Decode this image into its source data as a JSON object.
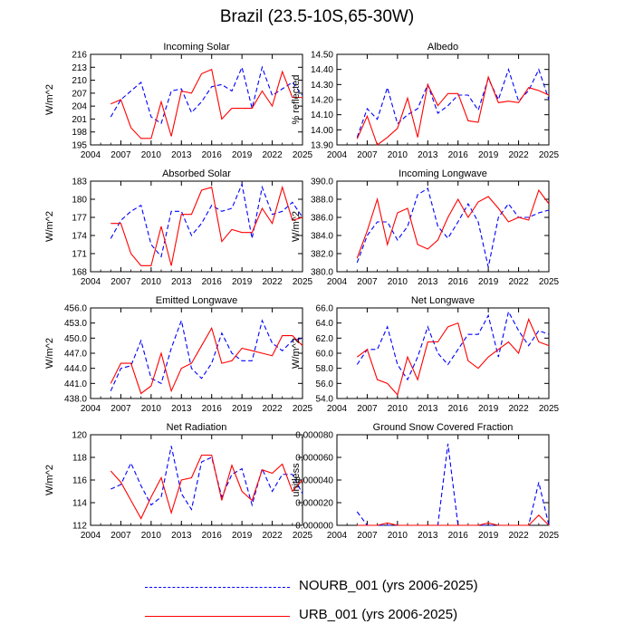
{
  "figure": {
    "title": "Brazil (23.5-10S,65-30W)"
  },
  "legend": {
    "items": [
      {
        "label": "NOURB_001 (yrs 2006-2025)",
        "color": "#0000ff",
        "style": "dashed"
      },
      {
        "label": "URB_001 (yrs 2006-2025)",
        "color": "#ff0000",
        "style": "solid"
      }
    ]
  },
  "chart_data": [
    {
      "type": "line",
      "title": "Incoming Solar",
      "ylabel": "W/m^2",
      "xlim": [
        2004,
        2025
      ],
      "ylim": [
        195,
        216
      ],
      "xticks": [
        "2004",
        "2007",
        "2010",
        "2013",
        "2016",
        "2019",
        "2022",
        "2025"
      ],
      "yticks": [
        "195",
        "198",
        "201",
        "204",
        "207",
        "210",
        "213",
        "216"
      ],
      "x": [
        2006,
        2007,
        2008,
        2009,
        2010,
        2011,
        2012,
        2013,
        2014,
        2015,
        2016,
        2017,
        2018,
        2019,
        2020,
        2021,
        2022,
        2023,
        2024,
        2025
      ],
      "series": [
        {
          "name": "NOURB_001",
          "color": "#0000ff",
          "dash": "dashed",
          "values": [
            201.5,
            205.5,
            207.5,
            209.5,
            201.5,
            200.0,
            207.5,
            208.0,
            202.5,
            205.0,
            208.5,
            209.0,
            207.5,
            213.0,
            203.5,
            213.0,
            206.5,
            208.0,
            209.5,
            206.5
          ]
        },
        {
          "name": "URB_001",
          "color": "#ff0000",
          "dash": "solid",
          "values": [
            204.5,
            205.5,
            199.0,
            196.5,
            196.5,
            205.0,
            197.0,
            207.5,
            207.0,
            211.5,
            212.5,
            201.0,
            203.5,
            203.5,
            203.5,
            207.5,
            204.0,
            212.0,
            206.0,
            206.0
          ]
        }
      ]
    },
    {
      "type": "line",
      "title": "Albedo",
      "ylabel": "% reflected",
      "xlim": [
        2004,
        2025
      ],
      "ylim": [
        13.9,
        14.5
      ],
      "xticks": [
        "2004",
        "2007",
        "2010",
        "2013",
        "2016",
        "2019",
        "2022",
        "2025"
      ],
      "yticks": [
        "13.90",
        "14.00",
        "14.10",
        "14.20",
        "14.30",
        "14.40",
        "14.50"
      ],
      "x": [
        2006,
        2007,
        2008,
        2009,
        2010,
        2011,
        2012,
        2013,
        2014,
        2015,
        2016,
        2017,
        2018,
        2019,
        2020,
        2021,
        2022,
        2023,
        2024,
        2025
      ],
      "series": [
        {
          "name": "NOURB_001",
          "color": "#0000ff",
          "dash": "dashed",
          "values": [
            13.95,
            14.14,
            14.07,
            14.28,
            14.04,
            14.1,
            14.14,
            14.3,
            14.11,
            14.16,
            14.23,
            14.23,
            14.13,
            14.34,
            14.2,
            14.4,
            14.19,
            14.26,
            14.4,
            14.2
          ]
        },
        {
          "name": "URB_001",
          "color": "#ff0000",
          "dash": "solid",
          "values": [
            13.94,
            14.09,
            13.9,
            13.95,
            14.01,
            14.21,
            13.95,
            14.3,
            14.16,
            14.24,
            14.24,
            14.06,
            14.05,
            14.35,
            14.18,
            14.19,
            14.18,
            14.28,
            14.26,
            14.23
          ]
        }
      ]
    },
    {
      "type": "line",
      "title": "Absorbed Solar",
      "ylabel": "W/m^2",
      "xlim": [
        2004,
        2025
      ],
      "ylim": [
        168,
        183
      ],
      "xticks": [
        "2004",
        "2007",
        "2010",
        "2013",
        "2016",
        "2019",
        "2022",
        "2025"
      ],
      "yticks": [
        "168",
        "171",
        "174",
        "177",
        "180",
        "183"
      ],
      "x": [
        2006,
        2007,
        2008,
        2009,
        2010,
        2011,
        2012,
        2013,
        2014,
        2015,
        2016,
        2017,
        2018,
        2019,
        2020,
        2021,
        2022,
        2023,
        2024,
        2025
      ],
      "series": [
        {
          "name": "NOURB_001",
          "color": "#0000ff",
          "dash": "dashed",
          "values": [
            173.5,
            176.5,
            178.0,
            179.0,
            172.5,
            170.5,
            178.0,
            178.0,
            174.0,
            176.0,
            179.0,
            178.0,
            178.5,
            182.5,
            173.5,
            182.0,
            177.5,
            178.0,
            179.5,
            177.0
          ]
        },
        {
          "name": "URB_001",
          "color": "#ff0000",
          "dash": "solid",
          "values": [
            176.0,
            176.0,
            171.0,
            169.0,
            169.0,
            175.5,
            169.0,
            177.5,
            177.5,
            181.5,
            182.0,
            173.0,
            175.0,
            174.5,
            174.5,
            178.5,
            176.0,
            182.0,
            176.5,
            177.0
          ]
        }
      ]
    },
    {
      "type": "line",
      "title": "Incoming Longwave",
      "ylabel": "W/m^2",
      "xlim": [
        2004,
        2025
      ],
      "ylim": [
        380,
        390
      ],
      "xticks": [
        "2004",
        "2007",
        "2010",
        "2013",
        "2016",
        "2019",
        "2022",
        "2025"
      ],
      "yticks": [
        "380.0",
        "382.0",
        "384.0",
        "386.0",
        "388.0",
        "390.0"
      ],
      "x": [
        2006,
        2007,
        2008,
        2009,
        2010,
        2011,
        2012,
        2013,
        2014,
        2015,
        2016,
        2017,
        2018,
        2019,
        2020,
        2021,
        2022,
        2023,
        2024,
        2025
      ],
      "series": [
        {
          "name": "NOURB_001",
          "color": "#0000ff",
          "dash": "dashed",
          "values": [
            381.0,
            384.0,
            385.5,
            385.5,
            383.5,
            385.0,
            388.5,
            389.2,
            385.0,
            383.7,
            385.5,
            387.5,
            385.5,
            380.5,
            386.0,
            387.5,
            386.0,
            386.0,
            386.5,
            386.8
          ]
        },
        {
          "name": "URB_001",
          "color": "#ff0000",
          "dash": "solid",
          "values": [
            381.5,
            384.5,
            388.0,
            383.0,
            386.5,
            387.0,
            383.0,
            382.5,
            383.5,
            386.0,
            388.0,
            386.0,
            387.7,
            388.3,
            387.0,
            385.5,
            386.0,
            385.7,
            389.0,
            387.5
          ]
        }
      ]
    },
    {
      "type": "line",
      "title": "Emitted Longwave",
      "ylabel": "W/m^2",
      "xlim": [
        2004,
        2025
      ],
      "ylim": [
        438,
        456
      ],
      "xticks": [
        "2004",
        "2007",
        "2010",
        "2013",
        "2016",
        "2019",
        "2022",
        "2025"
      ],
      "yticks": [
        "438.0",
        "441.0",
        "444.0",
        "447.0",
        "450.0",
        "453.0",
        "456.0"
      ],
      "x": [
        2006,
        2007,
        2008,
        2009,
        2010,
        2011,
        2012,
        2013,
        2014,
        2015,
        2016,
        2017,
        2018,
        2019,
        2020,
        2021,
        2022,
        2023,
        2024,
        2025
      ],
      "series": [
        {
          "name": "NOURB_001",
          "color": "#0000ff",
          "dash": "dashed",
          "values": [
            439.5,
            444.0,
            444.5,
            449.5,
            442.0,
            441.0,
            448.0,
            453.5,
            444.0,
            442.0,
            445.0,
            451.0,
            447.0,
            445.5,
            445.5,
            453.5,
            449.0,
            447.5,
            449.5,
            450.0
          ]
        },
        {
          "name": "URB_001",
          "color": "#ff0000",
          "dash": "solid",
          "values": [
            441.0,
            445.0,
            445.0,
            439.0,
            440.5,
            447.0,
            439.5,
            444.0,
            445.0,
            448.5,
            452.0,
            445.0,
            445.5,
            448.0,
            447.5,
            447.0,
            446.5,
            450.5,
            450.5,
            448.5
          ]
        }
      ]
    },
    {
      "type": "line",
      "title": "Net Longwave",
      "ylabel": "W/m^2",
      "xlim": [
        2004,
        2025
      ],
      "ylim": [
        54,
        66
      ],
      "xticks": [
        "2004",
        "2007",
        "2010",
        "2013",
        "2016",
        "2019",
        "2022",
        "2025"
      ],
      "yticks": [
        "54.0",
        "56.0",
        "58.0",
        "60.0",
        "62.0",
        "64.0",
        "66.0"
      ],
      "x": [
        2006,
        2007,
        2008,
        2009,
        2010,
        2011,
        2012,
        2013,
        2014,
        2015,
        2016,
        2017,
        2018,
        2019,
        2020,
        2021,
        2022,
        2023,
        2024,
        2025
      ],
      "series": [
        {
          "name": "NOURB_001",
          "color": "#0000ff",
          "dash": "dashed",
          "values": [
            58.5,
            60.5,
            60.5,
            63.5,
            58.5,
            56.5,
            59.5,
            63.5,
            60.0,
            58.5,
            60.5,
            62.5,
            62.5,
            65.0,
            59.5,
            65.5,
            63.0,
            61.0,
            63.0,
            62.5
          ]
        },
        {
          "name": "URB_001",
          "color": "#ff0000",
          "dash": "solid",
          "values": [
            59.5,
            60.5,
            56.5,
            56.0,
            54.5,
            59.5,
            56.5,
            61.5,
            61.5,
            63.5,
            64.0,
            59.0,
            58.0,
            59.5,
            60.5,
            61.5,
            60.0,
            64.5,
            61.5,
            61.0
          ]
        }
      ]
    },
    {
      "type": "line",
      "title": "Net Radiation",
      "ylabel": "W/m^2",
      "xlim": [
        2004,
        2025
      ],
      "ylim": [
        112,
        120
      ],
      "xticks": [
        "2004",
        "2007",
        "2010",
        "2013",
        "2016",
        "2019",
        "2022",
        "2025"
      ],
      "yticks": [
        "112",
        "114",
        "116",
        "118",
        "120"
      ],
      "x": [
        2006,
        2007,
        2008,
        2009,
        2010,
        2011,
        2012,
        2013,
        2014,
        2015,
        2016,
        2017,
        2018,
        2019,
        2020,
        2021,
        2022,
        2023,
        2024,
        2025
      ],
      "series": [
        {
          "name": "NOURB_001",
          "color": "#0000ff",
          "dash": "dashed",
          "values": [
            115.2,
            115.6,
            117.5,
            115.5,
            113.8,
            114.5,
            119.0,
            114.8,
            113.4,
            117.6,
            118.0,
            114.5,
            116.5,
            117.0,
            113.8,
            117.0,
            115.0,
            116.5,
            116.5,
            114.8
          ]
        },
        {
          "name": "URB_001",
          "color": "#ff0000",
          "dash": "solid",
          "values": [
            116.8,
            115.8,
            114.2,
            112.6,
            114.5,
            116.2,
            113.1,
            116.0,
            116.2,
            118.2,
            118.2,
            114.2,
            117.3,
            115.0,
            114.2,
            116.9,
            116.6,
            117.4,
            115.0,
            116.0
          ]
        }
      ]
    },
    {
      "type": "line",
      "title": "Ground Snow Covered Fraction",
      "ylabel": "unitless",
      "xlim": [
        2004,
        2025
      ],
      "ylim": [
        0,
        8e-05
      ],
      "xticks": [
        "2004",
        "2007",
        "2010",
        "2013",
        "2016",
        "2019",
        "2022",
        "2025"
      ],
      "yticks": [
        "0.000000",
        "0.000020",
        "0.000040",
        "0.000060",
        "0.000080"
      ],
      "x": [
        2006,
        2007,
        2008,
        2009,
        2010,
        2011,
        2012,
        2013,
        2014,
        2015,
        2016,
        2017,
        2018,
        2019,
        2020,
        2021,
        2022,
        2023,
        2024,
        2025
      ],
      "series": [
        {
          "name": "NOURB_001",
          "color": "#0000ff",
          "dash": "dashed",
          "values": [
            1.2e-05,
            0.0,
            0.0,
            0.0,
            0.0,
            0.0,
            0.0,
            0.0,
            0.0,
            7.2e-05,
            0.0,
            0.0,
            0.0,
            0.0,
            0.0,
            0.0,
            0.0,
            0.0,
            3.8e-05,
            0.0
          ]
        },
        {
          "name": "URB_001",
          "color": "#ff0000",
          "dash": "solid",
          "values": [
            0.0,
            0.0,
            0.0,
            2e-06,
            0.0,
            0.0,
            0.0,
            0.0,
            0.0,
            0.0,
            0.0,
            0.0,
            0.0,
            2e-06,
            0.0,
            0.0,
            0.0,
            0.0,
            9e-06,
            0.0
          ]
        }
      ]
    }
  ]
}
